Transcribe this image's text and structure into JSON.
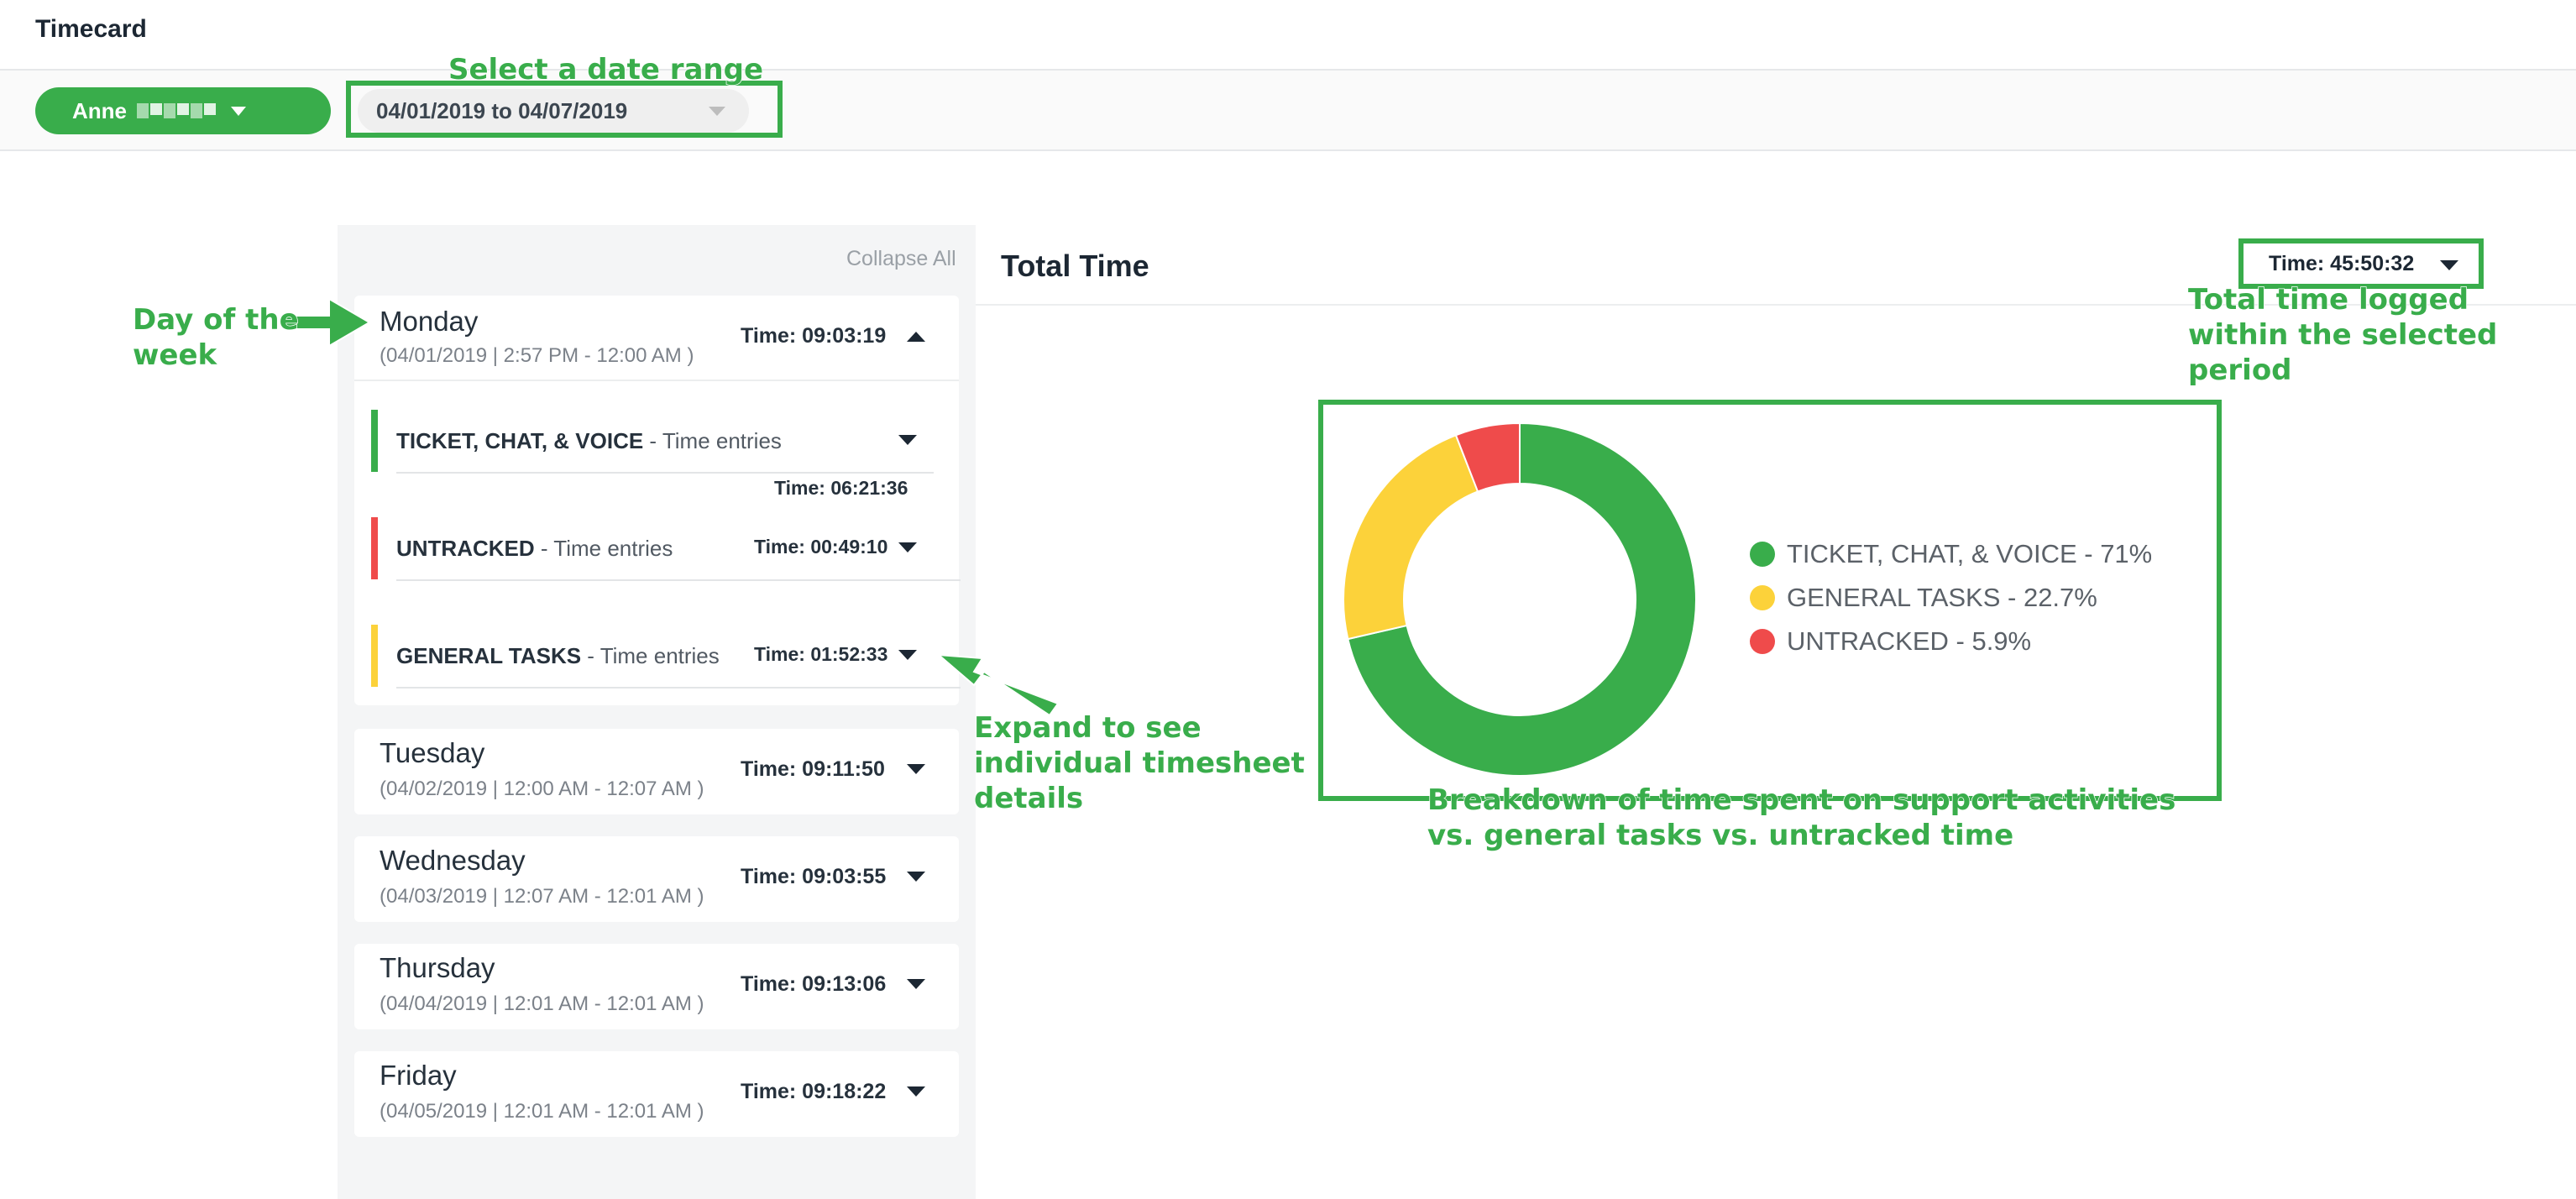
{
  "app": {
    "title": "Timecard"
  },
  "toolbar": {
    "user_name": "Anne",
    "date_range": "04/01/2019 to 04/07/2019"
  },
  "annotations": {
    "date": "Select a date range",
    "day": "Day of the week",
    "expand": "Expand to see individual timesheet details",
    "total": "Total time logged within the selected period",
    "breakdown": "Breakdown of time spent on support activities vs. general tasks vs. untracked time"
  },
  "panel": {
    "collapse_all": "Collapse All",
    "days": [
      {
        "name": "Monday",
        "range": "(04/01/2019 | 2:57 PM - 12:00 AM )",
        "time": "Time: 09:03:19",
        "expanded": true
      },
      {
        "name": "Tuesday",
        "range": "(04/02/2019 | 12:00 AM - 12:07 AM )",
        "time": "Time: 09:11:50",
        "expanded": false
      },
      {
        "name": "Wednesday",
        "range": "(04/03/2019 | 12:07 AM - 12:01 AM )",
        "time": "Time: 09:03:55",
        "expanded": false
      },
      {
        "name": "Thursday",
        "range": "(04/04/2019 | 12:01 AM - 12:01 AM )",
        "time": "Time: 09:13:06",
        "expanded": false
      },
      {
        "name": "Friday",
        "range": "(04/05/2019 | 12:01 AM - 12:01 AM )",
        "time": "Time: 09:18:22",
        "expanded": false
      }
    ],
    "monday_categories": [
      {
        "name": "TICKET, CHAT, & VOICE",
        "suffix": " - Time entries",
        "time": "Time: 06:21:36",
        "color": "#39ad4b"
      },
      {
        "name": "UNTRACKED",
        "suffix": " - Time entries",
        "time": "Time: 00:49:10",
        "color": "#ef4b4b"
      },
      {
        "name": "GENERAL TASKS",
        "suffix": " - Time entries",
        "time": "Time: 01:52:33",
        "color": "#fcd23a"
      }
    ]
  },
  "total": {
    "title": "Total Time",
    "time": "Time: 45:50:32"
  },
  "chart_data": {
    "type": "pie",
    "style": "donut",
    "legend_position": "right",
    "series": [
      {
        "name": "TICKET, CHAT, & VOICE",
        "value": 71.4,
        "label": "TICKET, CHAT, & VOICE - 71%",
        "color": "#39ad4b"
      },
      {
        "name": "GENERAL TASKS",
        "value": 22.7,
        "label": "GENERAL TASKS - 22.7%",
        "color": "#fcd23a"
      },
      {
        "name": "UNTRACKED",
        "value": 5.9,
        "label": "UNTRACKED - 5.9%",
        "color": "#ef4b4b"
      }
    ]
  }
}
